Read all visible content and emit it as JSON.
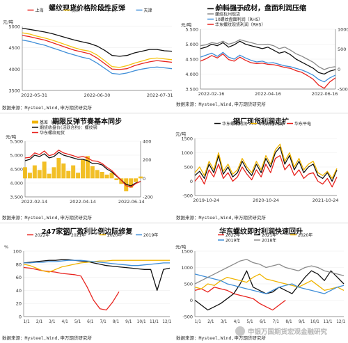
{
  "watermark": {
    "text": "申银万国期货宏观金融研究",
    "icon": "wechat-icon"
  },
  "chart_data": [
    {
      "type": "line",
      "title": "螺纹现货价格阶段性反弹",
      "ylabel": "元/吨",
      "ylim": [
        3500,
        5000
      ],
      "yticks": [
        "5000",
        "4500",
        "4000",
        "3500"
      ],
      "xticks": [
        "2022-05-31",
        "2022-06-30",
        "2022-07-31"
      ],
      "x": [
        0,
        1,
        2,
        3,
        4,
        5,
        6,
        7,
        8,
        9,
        10,
        11,
        12,
        13,
        14,
        15,
        16,
        17,
        18,
        19,
        20
      ],
      "legend": "top",
      "source": "数据来源：Mysteel,Wind,申万期货研究所",
      "series": [
        {
          "name": "上海",
          "color": "#e8231e",
          "values": [
            4790,
            4760,
            4720,
            4680,
            4620,
            4560,
            4500,
            4440,
            4400,
            4360,
            4260,
            4130,
            4000,
            3990,
            4010,
            4080,
            4130,
            4170,
            4200,
            4180,
            4160
          ]
        },
        {
          "name": "杭州",
          "color": "#f4c20d",
          "values": [
            4850,
            4820,
            4770,
            4730,
            4680,
            4620,
            4560,
            4500,
            4450,
            4420,
            4330,
            4200,
            4060,
            4040,
            4080,
            4140,
            4190,
            4240,
            4260,
            4240,
            4220
          ]
        },
        {
          "name": "广州",
          "color": "#111111",
          "values": [
            4960,
            4930,
            4900,
            4870,
            4830,
            4780,
            4730,
            4680,
            4640,
            4600,
            4540,
            4440,
            4320,
            4300,
            4320,
            4380,
            4420,
            4460,
            4460,
            4430,
            4420
          ]
        },
        {
          "name": "天津",
          "color": "#3f8ed8",
          "values": [
            4680,
            4650,
            4600,
            4560,
            4500,
            4440,
            4380,
            4330,
            4280,
            4240,
            4140,
            4020,
            3900,
            3880,
            3910,
            3960,
            4000,
            4030,
            4050,
            4030,
            4010
          ]
        }
      ]
    },
    {
      "type": "line",
      "title": "炉料强于成材，盘面利润压缩",
      "ylabel": "元/吨",
      "ylim": [
        3500,
        5500
      ],
      "ylim_right": [
        -500,
        1000
      ],
      "yticks": [
        "5.500",
        "5.000",
        "4.500",
        "4.000",
        "3.500"
      ],
      "yticks_right": [
        "1000",
        "500",
        "0",
        "-500"
      ],
      "xticks": [
        "2022-02-16",
        "2022-04-16",
        "2022-06-16"
      ],
      "x": [
        0,
        1,
        2,
        3,
        4,
        5,
        6,
        7,
        8,
        9,
        10,
        11,
        12,
        13,
        14,
        15,
        16,
        17,
        18,
        19,
        20,
        21,
        22,
        23,
        24
      ],
      "legend": "top-right",
      "source": "数据来源：Mysteel,Wind,申万期货研究所",
      "series": [
        {
          "name": "螺纹钢10月交割",
          "color": "#111111",
          "values": [
            4850,
            4900,
            5000,
            4950,
            5050,
            4900,
            4980,
            5100,
            5000,
            4950,
            4900,
            4850,
            4900,
            4800,
            4700,
            4750,
            4650,
            4500,
            4400,
            4300,
            4200,
            4050,
            4000,
            4100,
            4150
          ]
        },
        {
          "name": "螺纹杭州现货",
          "color": "#8a8a8a",
          "values": [
            4950,
            4980,
            5050,
            5020,
            5100,
            5000,
            5050,
            5150,
            5100,
            5050,
            5000,
            4980,
            5000,
            4950,
            4850,
            4900,
            4800,
            4680,
            4600,
            4500,
            4400,
            4250,
            4150,
            4220,
            4250
          ]
        },
        {
          "name": "10螺纹盘面利润（RHS）",
          "color": "#3f8ed8",
          "axis": "right",
          "values": [
            300,
            350,
            400,
            320,
            420,
            300,
            250,
            350,
            280,
            220,
            180,
            200,
            150,
            160,
            120,
            80,
            60,
            20,
            -20,
            -80,
            -150,
            -260,
            -320,
            -220,
            -150
          ]
        },
        {
          "name": "华东螺纹现货利润（RHS）",
          "color": "#e8231e",
          "axis": "right",
          "values": [
            200,
            260,
            340,
            280,
            380,
            240,
            200,
            300,
            220,
            160,
            140,
            150,
            120,
            110,
            80,
            40,
            20,
            -40,
            -80,
            -160,
            -250,
            -400,
            -480,
            -320,
            -220
          ]
        }
      ]
    },
    {
      "type": "area",
      "title": "期限反弹节奏基本同步",
      "ylabel": "元/吨",
      "ylim": [
        3500,
        5500
      ],
      "ylim_right": [
        -200,
        400
      ],
      "yticks": [
        "5.500",
        "5.000",
        "4.500",
        "4.000",
        "3.500"
      ],
      "yticks_right": [
        "400",
        "200",
        "0",
        "-200"
      ],
      "xticks": [
        "2022-02-14",
        "2022-04-14",
        "2022-06-14"
      ],
      "x": [
        0,
        1,
        2,
        3,
        4,
        5,
        6,
        7,
        8,
        9,
        10,
        11,
        12,
        13,
        14,
        15,
        16,
        17,
        18,
        19,
        20,
        21,
        22,
        23,
        24
      ],
      "legend": "top",
      "source": "数据来源：Mysteel,Wind,申万期货研究所",
      "series": [
        {
          "name": "基差（RHS）",
          "color": "#f0b400",
          "axis": "right",
          "kind": "area",
          "values": [
            120,
            60,
            140,
            90,
            180,
            50,
            120,
            220,
            160,
            80,
            140,
            60,
            200,
            240,
            130,
            90,
            70,
            40,
            60,
            -20,
            -60,
            -140,
            -100,
            -40,
            20
          ]
        },
        {
          "name": "期货收盘价(活跃合约)：螺纹钢",
          "color": "#111111",
          "values": [
            4800,
            4850,
            5000,
            4950,
            5050,
            4900,
            4950,
            5100,
            5000,
            4950,
            4900,
            4850,
            4850,
            4800,
            4700,
            4700,
            4650,
            4500,
            4400,
            4250,
            4100,
            3950,
            3900,
            4000,
            4050
          ]
        },
        {
          "name": "华东螺纹现货",
          "color": "#e8231e",
          "values": [
            4900,
            4920,
            5080,
            5020,
            5150,
            4980,
            5030,
            5180,
            5080,
            5030,
            4980,
            4920,
            4950,
            4900,
            4800,
            4780,
            4700,
            4560,
            4450,
            4270,
            4100,
            3900,
            3850,
            3980,
            4060
          ]
        }
      ]
    },
    {
      "type": "line",
      "title": "钢厂现货利润走扩",
      "ylabel": "元/吨",
      "ylim": [
        -500,
        1500
      ],
      "yticks": [
        "1500",
        "1000",
        "500",
        "0",
        "-500"
      ],
      "xticks": [
        "2019-10-24",
        "2020-10-24",
        "2021-10-24"
      ],
      "x": [
        0,
        1,
        2,
        3,
        4,
        5,
        6,
        7,
        8,
        9,
        10,
        11,
        12,
        13,
        14,
        15,
        16,
        17,
        18,
        19,
        20,
        21,
        22,
        23,
        24,
        25,
        26,
        27,
        28,
        29,
        30
      ],
      "legend": "top",
      "source": "数据来源：Mysteel,Wind,申万期货研究所",
      "series": [
        {
          "name": "华东螺纹利润",
          "color": "#111111",
          "values": [
            200,
            350,
            100,
            600,
            300,
            900,
            250,
            500,
            150,
            300,
            700,
            400,
            200,
            600,
            300,
            800,
            500,
            1000,
            1200,
            600,
            900,
            400,
            700,
            300,
            500,
            600,
            200,
            100,
            300,
            0,
            400
          ]
        },
        {
          "name": "华东热卷利润",
          "color": "#f0b400",
          "values": [
            300,
            500,
            200,
            700,
            400,
            1000,
            350,
            600,
            250,
            400,
            800,
            500,
            300,
            700,
            400,
            900,
            600,
            1100,
            1300,
            700,
            1000,
            500,
            800,
            400,
            600,
            700,
            300,
            200,
            350,
            100,
            450
          ]
        },
        {
          "name": "华东平电",
          "color": "#e8231e",
          "values": [
            0,
            200,
            -100,
            400,
            150,
            600,
            100,
            300,
            0,
            150,
            500,
            250,
            50,
            400,
            150,
            600,
            300,
            800,
            900,
            400,
            600,
            200,
            400,
            100,
            250,
            300,
            0,
            -100,
            100,
            -200,
            150
          ]
        }
      ]
    },
    {
      "type": "line",
      "title": "247家钢厂盈利比例边际修复",
      "ylabel": "%",
      "ylim": [
        0,
        100
      ],
      "yticks": [
        "100",
        "80",
        "60",
        "40",
        "20",
        "0"
      ],
      "xticks": [
        "1/1",
        "2/1",
        "3/1",
        "4/1",
        "5/1",
        "6/1",
        "7/1",
        "8/1",
        "9/1",
        "10/1",
        "11/1",
        "12/1"
      ],
      "x": [
        0,
        1,
        2,
        3,
        4,
        5,
        6,
        7,
        8,
        9,
        10,
        11,
        12,
        13,
        14,
        15,
        16,
        17,
        18,
        19,
        20,
        21,
        22,
        23
      ],
      "legend": "top",
      "source": "数据来源：Mysteel,Wind,申万期货研究所",
      "series": [
        {
          "name": "2022年",
          "color": "#e8231e",
          "values": [
            75,
            74,
            72,
            70,
            69,
            68,
            66,
            65,
            64,
            62,
            45,
            25,
            12,
            10,
            22,
            38,
            null,
            null,
            null,
            null,
            null,
            null,
            null,
            null
          ]
        },
        {
          "name": "2021年",
          "color": "#111111",
          "values": [
            82,
            83,
            84,
            85,
            86,
            86,
            87,
            87,
            86,
            85,
            84,
            82,
            80,
            78,
            77,
            76,
            75,
            74,
            73,
            72,
            72,
            40,
            72,
            74
          ]
        },
        {
          "name": "2020年",
          "color": "#f0b400",
          "values": [
            80,
            78,
            74,
            70,
            68,
            72,
            76,
            78,
            80,
            82,
            83,
            84,
            85,
            85,
            86,
            86,
            86,
            86,
            86,
            86,
            86,
            86,
            86,
            86
          ]
        },
        {
          "name": "2019年",
          "color": "#3f8ed8",
          "values": [
            82,
            82,
            83,
            83,
            84,
            84,
            85,
            86,
            86,
            86,
            85,
            84,
            83,
            82,
            81,
            80,
            79,
            78,
            78,
            79,
            80,
            81,
            82,
            82
          ]
        }
      ]
    },
    {
      "type": "line",
      "title": "华东螺纹即时利润快速回升",
      "ylabel": "元/吨",
      "ylim": [
        -500,
        1500
      ],
      "yticks": [
        "1500",
        "1000",
        "500",
        "0",
        "-500"
      ],
      "xticks": [
        "1/1",
        "2/1",
        "3/1",
        "4/1",
        "5/1",
        "6/1",
        "7/1",
        "8/1",
        "9/1",
        "10/1",
        "11/1",
        "12/1"
      ],
      "x": [
        0,
        1,
        2,
        3,
        4,
        5,
        6,
        7,
        8,
        9,
        10,
        11,
        12,
        13,
        14,
        15,
        16,
        17,
        18,
        19,
        20,
        21,
        22,
        23
      ],
      "legend": "top",
      "source": "数据来源：Mysteel,Wind,申万期货研究所",
      "series": [
        {
          "name": "2022年",
          "color": "#e8231e",
          "values": [
            300,
            350,
            250,
            400,
            350,
            300,
            200,
            150,
            100,
            50,
            -100,
            -200,
            -300,
            -150,
            0,
            null,
            null,
            null,
            null,
            null,
            null,
            null,
            null,
            null
          ]
        },
        {
          "name": "2021年",
          "color": "#111111",
          "values": [
            0,
            -150,
            -300,
            -200,
            -100,
            50,
            200,
            500,
            900,
            400,
            300,
            200,
            250,
            400,
            300,
            200,
            450,
            700,
            900,
            800,
            600,
            900,
            700,
            500
          ]
        },
        {
          "name": "2020年",
          "color": "#f0b400",
          "values": [
            400,
            350,
            500,
            450,
            600,
            700,
            650,
            600,
            550,
            700,
            800,
            650,
            600,
            550,
            500,
            450,
            400,
            500,
            600,
            450,
            300,
            350,
            400,
            300
          ]
        },
        {
          "name": "2019年",
          "color": "#3f8ed8",
          "values": [
            800,
            750,
            700,
            650,
            600,
            500,
            450,
            400,
            350,
            300,
            250,
            200,
            300,
            400,
            450,
            500,
            400,
            350,
            300,
            250,
            200,
            300,
            400,
            450
          ]
        },
        {
          "name": "2018年",
          "color": "#8a8a8a",
          "values": [
            500,
            600,
            700,
            800,
            900,
            1000,
            1100,
            1200,
            1250,
            1150,
            1100,
            1000,
            1050,
            1100,
            1000,
            950,
            900,
            1000,
            1050,
            1000,
            900,
            850,
            800,
            750
          ]
        }
      ]
    }
  ]
}
